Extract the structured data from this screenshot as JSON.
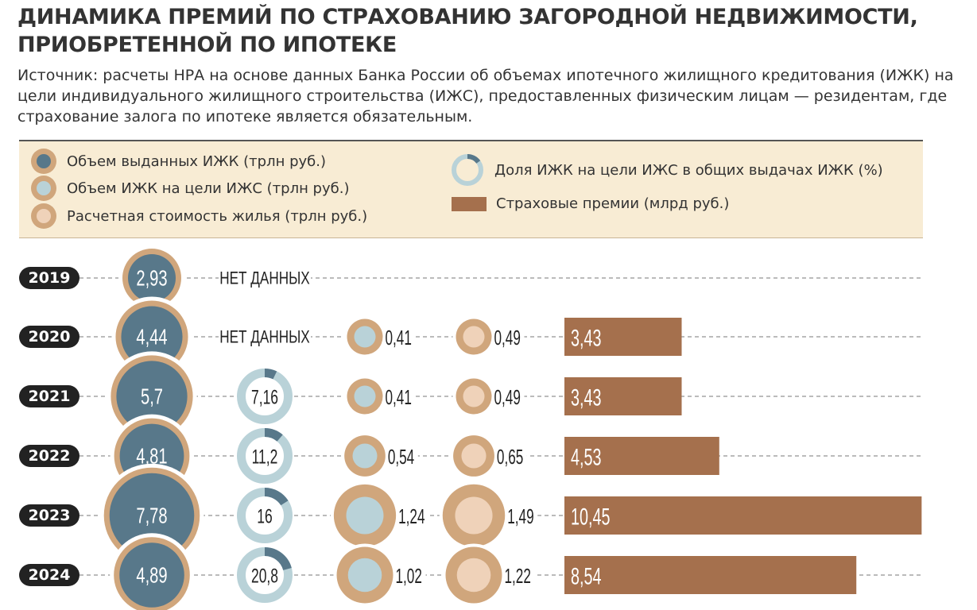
{
  "title": "ДИНАМИКА ПРЕМИЙ ПО СТРАХОВАНИЮ ЗАГОРОДНОЙ НЕДВИЖИМОСТИ, ПРИОБРЕТЕННОЙ ПО ИПОТЕКЕ",
  "subtitle": "Источник: расчеты НРА на основе данных Банка России об объемах ипотечного жилищного кредитования (ИЖК) на цели индивидуального жилищного строительства (ИЖС), предоставленных физическим лицам — резидентам, где страхование залога по ипотеке является обязательным.",
  "legend": {
    "izhk_volume": "Объем выданных ИЖК (трлн руб.)",
    "izhs_volume": "Объем ИЖК на цели ИЖС (трлн руб.)",
    "housing_cost": "Расчетная стоимость жилья (трлн руб.)",
    "izhs_share": "Доля ИЖК на цели ИЖС в общих выдачах ИЖК (%)",
    "premiums": "Страховые премии (млрд руб.)"
  },
  "colors": {
    "dark_slate": "#58788a",
    "light_blue": "#b9d2d8",
    "tan_ring": "#d0a67c",
    "light_peach": "#efd2b9",
    "bar_brown": "#a5704d",
    "legend_bg": "#f8ecd4"
  },
  "chart_data": {
    "type": "table",
    "years": [
      "2019",
      "2020",
      "2021",
      "2022",
      "2023",
      "2024"
    ],
    "no_data_label": "НЕТ ДАННЫХ",
    "series": [
      {
        "name": "Объем выданных ИЖК (трлн руб.)",
        "values": [
          2.93,
          4.44,
          5.7,
          4.81,
          7.78,
          4.89
        ],
        "labels": [
          "2,93",
          "4,44",
          "5,7",
          "4,81",
          "7,78",
          "4,89"
        ]
      },
      {
        "name": "Доля ИЖК на цели ИЖС в общих выдачах ИЖК (%)",
        "values": [
          null,
          null,
          7.16,
          11.2,
          16,
          20.8
        ],
        "labels": [
          "НЕТ ДАННЫХ",
          "НЕТ ДАННЫХ",
          "7,16",
          "11,2",
          "16",
          "20,8"
        ]
      },
      {
        "name": "Объем ИЖК на цели ИЖС (трлн руб.)",
        "values": [
          null,
          0.41,
          0.41,
          0.54,
          1.24,
          1.02
        ],
        "labels": [
          "",
          "0,41",
          "0,41",
          "0,54",
          "1,24",
          "1,02"
        ]
      },
      {
        "name": "Расчетная стоимость жилья (трлн руб.)",
        "values": [
          null,
          0.49,
          0.49,
          0.65,
          1.49,
          1.22
        ],
        "labels": [
          "",
          "0,49",
          "0,49",
          "0,65",
          "1,49",
          "1,22"
        ]
      },
      {
        "name": "Страховые премии (млрд руб.)",
        "values": [
          null,
          3.43,
          3.43,
          4.53,
          10.45,
          8.54
        ],
        "labels": [
          "",
          "3,43",
          "3,43",
          "4,53",
          "10,45",
          "8,54"
        ]
      }
    ]
  }
}
